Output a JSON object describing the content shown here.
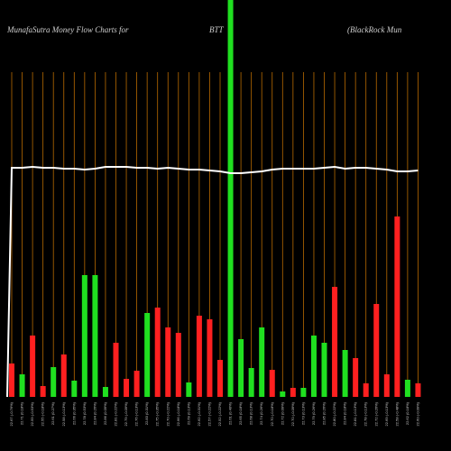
{
  "chart_data": {
    "type": "bar",
    "title": "MunafaSutra  Money Flow  Charts for",
    "subtitle": "BTT",
    "company": "(BlackRock Mun",
    "ylim": [
      0,
      440
    ],
    "categories": [
      "22.67 (-0.76%)",
      "22.71 (0.18%)",
      "22.59 (-0.53%)",
      "22.55 (-0.18%)",
      "22.61 (0.27%)",
      "22.58 (-0.13%)",
      "22.66 (0.35%)",
      "22.78 (0.53%)",
      "22.84 (0.26%)",
      "22.86 (0.09%)",
      "22.81 (-0.22%)",
      "22.79 (-0.09%)",
      "22.76 (-0.13%)",
      "22.83 (0.31%)",
      "22.75 (-0.35%)",
      "22.70 (-0.22%)",
      "22.66 (-0.18%)",
      "22.69 (0.13%)",
      "22.62 (-0.31%)",
      "22.57 (-0.22%)",
      "22.52 (-0.22%)",
      "22.61 (0.40%)",
      "22.65 (0.18%)",
      "22.68 (0.13%)",
      "22.74 (0.26%)",
      "22.70 (-0.18%)",
      "22.72 (0.09%)",
      "22.70 (-0.09%)",
      "22.73 (0.13%)",
      "22.79 (0.26%)",
      "22.85 (0.26%)",
      "22.80 (-0.22%)",
      "22.84 (0.18%)",
      "22.81 (-0.13%)",
      "22.78 (-0.13%)",
      "22.72 (-0.26%)",
      "22.69 (-0.13%)",
      "22.58 (-0.48%)",
      "22.62 (0.18%)",
      "22.60 (-0.09%)"
    ],
    "bar_colors": [
      "#ff2020",
      "#20e020",
      "#ff2020",
      "#ff2020",
      "#20e020",
      "#ff2020",
      "#20e020",
      "#20e020",
      "#20e020",
      "#20e020",
      "#ff2020",
      "#ff2020",
      "#ff2020",
      "#20e020",
      "#ff2020",
      "#ff2020",
      "#ff2020",
      "#20e020",
      "#ff2020",
      "#ff2020",
      "#ff2020",
      "#20e020",
      "#20e020",
      "#20e020",
      "#20e020",
      "#ff2020",
      "#20e020",
      "#ff2020",
      "#20e020",
      "#20e020",
      "#20e020",
      "#ff2020",
      "#20e020",
      "#ff2020",
      "#ff2020",
      "#ff2020",
      "#ff2020",
      "#ff2020",
      "#20e020",
      "#ff2020"
    ],
    "values": [
      37,
      25,
      68,
      12,
      33,
      47,
      18,
      135,
      135,
      11,
      60,
      20,
      29,
      93,
      99,
      77,
      71,
      16,
      90,
      86,
      41,
      440,
      64,
      32,
      77,
      30,
      6,
      10,
      10,
      68,
      60,
      122,
      52,
      43,
      15,
      103,
      25,
      200,
      19,
      15
    ],
    "line": {
      "color": "#ffffff",
      "values": [
        254,
        254,
        255,
        254,
        254,
        253,
        253,
        252,
        253,
        255,
        255,
        255,
        254,
        254,
        253,
        254,
        253,
        252,
        252,
        251,
        250,
        248,
        248,
        249,
        250,
        252,
        253,
        253,
        253,
        253,
        254,
        255,
        253,
        254,
        254,
        253,
        252,
        250,
        250,
        251
      ]
    },
    "grid_color": "#b86a00"
  }
}
